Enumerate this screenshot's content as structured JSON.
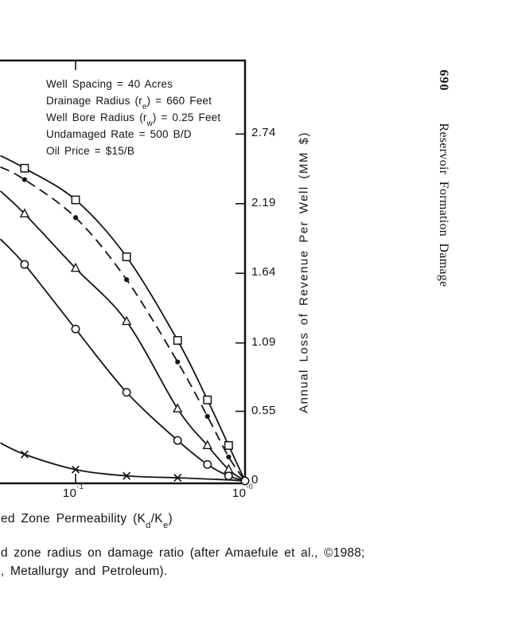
{
  "header": {
    "page_number": "690",
    "running_title": "Reservoir Formation Damage"
  },
  "caption": {
    "line1": "d zone radius on damage ratio (after Amaefule et al., ©1988;",
    "line2": ", Metallurgy and Petroleum)."
  },
  "colors": {
    "ink": "#141414",
    "paper": "#ffffff"
  },
  "chart_data": {
    "type": "line",
    "x_scale": "log",
    "x_axis_title": "ed Zone Permeability (K_{d}/K_{e})",
    "y_axis_title": "Annual Loss of Revenue Per Well (MM $)",
    "x_range_visible": [
      0.036,
      1.0
    ],
    "y_range": [
      0,
      3.32
    ],
    "grid": false,
    "x_ticks": [
      {
        "label": "10^{-1}",
        "value": 0.1
      },
      {
        "label": "10^{-0}",
        "value": 1.0
      }
    ],
    "y_ticks": [
      {
        "label": "2.74",
        "value": 2.74
      },
      {
        "label": "2.19",
        "value": 2.19
      },
      {
        "label": "1.64",
        "value": 1.64
      },
      {
        "label": "1.09",
        "value": 1.09
      },
      {
        "label": "0.55",
        "value": 0.55
      },
      {
        "label": "0",
        "value": 0
      }
    ],
    "annotations": [
      "Well Spacing = 40 Acres",
      "Drainage Radius (r_{e}) = 660 Feet",
      "Well Bore Radius (r_{w}) = 0.25 Feet",
      "Undamaged Rate = 500 B/D",
      "Oil Price =  $15/B"
    ],
    "series": [
      {
        "name": "square-marker-curve",
        "marker": "square",
        "line": "solid",
        "x": [
          0.036,
          0.05,
          0.1,
          0.2,
          0.4,
          0.6,
          0.8,
          1.0
        ],
        "y": [
          2.57,
          2.47,
          2.22,
          1.77,
          1.11,
          0.64,
          0.28,
          0.0
        ],
        "markers_at_x": [
          0.05,
          0.1,
          0.2,
          0.4,
          0.6,
          0.8
        ]
      },
      {
        "name": "filled-dot-marker-curve",
        "marker": "dot",
        "line": "dashed",
        "x": [
          0.036,
          0.05,
          0.1,
          0.2,
          0.4,
          0.6,
          0.8,
          1.0
        ],
        "y": [
          2.48,
          2.38,
          2.08,
          1.59,
          0.94,
          0.51,
          0.19,
          0.0
        ],
        "markers_at_x": [
          0.05,
          0.1,
          0.2,
          0.4,
          0.6,
          0.8
        ]
      },
      {
        "name": "triangle-marker-curve",
        "marker": "triangle",
        "line": "solid",
        "x": [
          0.036,
          0.05,
          0.1,
          0.2,
          0.4,
          0.6,
          0.8,
          1.0
        ],
        "y": [
          2.29,
          2.11,
          1.68,
          1.26,
          0.57,
          0.28,
          0.09,
          0.0
        ],
        "markers_at_x": [
          0.05,
          0.1,
          0.2,
          0.4,
          0.6,
          0.8
        ]
      },
      {
        "name": "x-marker-curve",
        "marker": "x",
        "line": "solid",
        "x": [
          0.036,
          0.05,
          0.1,
          0.2,
          0.4,
          0.6,
          0.8,
          1.0
        ],
        "y": [
          0.3,
          0.21,
          0.09,
          0.04,
          0.025,
          0.015,
          0.008,
          0.0
        ],
        "markers_at_x": [
          0.05,
          0.1,
          0.2,
          0.4
        ]
      },
      {
        "name": "circle-marker-curve",
        "marker": "circle",
        "line": "solid",
        "x": [
          0.036,
          0.05,
          0.1,
          0.2,
          0.4,
          0.6,
          0.8,
          1.0
        ],
        "y": [
          1.91,
          1.71,
          1.2,
          0.7,
          0.32,
          0.13,
          0.04,
          0.0
        ],
        "markers_at_x": [
          0.05,
          0.1,
          0.2,
          0.4,
          0.6,
          0.8,
          1.0
        ]
      }
    ]
  }
}
